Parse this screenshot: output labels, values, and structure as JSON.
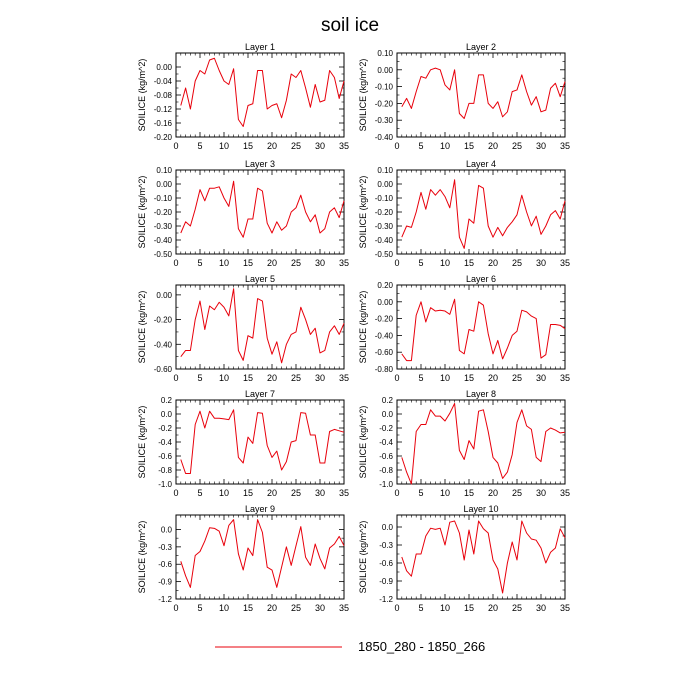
{
  "title": "soil ice",
  "legend": {
    "label": "1850_280 - 1850_266",
    "color": "#e8000b"
  },
  "line_color": "#e8000b",
  "chart_data": [
    {
      "type": "line",
      "title": "Layer 1",
      "ylabel": "SOILICE  (kg/m^2)",
      "xlim": [
        0,
        35
      ],
      "xticks": [
        0,
        5,
        10,
        15,
        20,
        25,
        30,
        35
      ],
      "ylim": [
        -0.2,
        0.04
      ],
      "yticks": [
        "0.00",
        "-0.04",
        "-0.08",
        "-0.12",
        "-0.16",
        "-0.20"
      ],
      "ytick_values": [
        0,
        -0.04,
        -0.08,
        -0.12,
        -0.16,
        -0.2
      ],
      "x": [
        1,
        2,
        3,
        4,
        5,
        6,
        7,
        8,
        9,
        10,
        11,
        12,
        13,
        14,
        15,
        16,
        17,
        18,
        19,
        20,
        21,
        22,
        23,
        24,
        25,
        26,
        27,
        28,
        29,
        30,
        31,
        32,
        33,
        34,
        35
      ],
      "values": [
        -0.11,
        -0.06,
        -0.12,
        -0.04,
        -0.01,
        -0.02,
        0.02,
        0.025,
        -0.01,
        -0.04,
        -0.05,
        -0.005,
        -0.15,
        -0.17,
        -0.11,
        -0.105,
        -0.01,
        -0.01,
        -0.12,
        -0.11,
        -0.105,
        -0.145,
        -0.095,
        -0.02,
        -0.03,
        -0.01,
        -0.06,
        -0.115,
        -0.05,
        -0.1,
        -0.095,
        -0.01,
        -0.03,
        -0.09,
        -0.04
      ]
    },
    {
      "type": "line",
      "title": "Layer 2",
      "ylabel": "SOILICE  (kg/m^2)",
      "xlim": [
        0,
        35
      ],
      "xticks": [
        0,
        5,
        10,
        15,
        20,
        25,
        30,
        35
      ],
      "ylim": [
        -0.4,
        0.1
      ],
      "yticks": [
        "0.10",
        "0.00",
        "-0.10",
        "-0.20",
        "-0.30",
        "-0.40"
      ],
      "ytick_values": [
        0.1,
        0,
        -0.1,
        -0.2,
        -0.3,
        -0.4
      ],
      "x": [
        1,
        2,
        3,
        4,
        5,
        6,
        7,
        8,
        9,
        10,
        11,
        12,
        13,
        14,
        15,
        16,
        17,
        18,
        19,
        20,
        21,
        22,
        23,
        24,
        25,
        26,
        27,
        28,
        29,
        30,
        31,
        32,
        33,
        34,
        35
      ],
      "values": [
        -0.22,
        -0.17,
        -0.23,
        -0.13,
        -0.04,
        -0.05,
        0.0,
        0.01,
        0.0,
        -0.09,
        -0.12,
        0.0,
        -0.26,
        -0.29,
        -0.2,
        -0.2,
        -0.03,
        -0.03,
        -0.2,
        -0.23,
        -0.19,
        -0.28,
        -0.25,
        -0.13,
        -0.12,
        -0.03,
        -0.13,
        -0.21,
        -0.16,
        -0.25,
        -0.24,
        -0.11,
        -0.08,
        -0.16,
        -0.07
      ]
    },
    {
      "type": "line",
      "title": "Layer 3",
      "ylabel": "SOILICE  (kg/m^2)",
      "xlim": [
        0,
        35
      ],
      "xticks": [
        0,
        5,
        10,
        15,
        20,
        25,
        30,
        35
      ],
      "ylim": [
        -0.5,
        0.1
      ],
      "yticks": [
        "0.10",
        "0.00",
        "-0.10",
        "-0.20",
        "-0.30",
        "-0.40",
        "-0.50"
      ],
      "ytick_values": [
        0.1,
        0,
        -0.1,
        -0.2,
        -0.3,
        -0.4,
        -0.5
      ],
      "x": [
        1,
        2,
        3,
        4,
        5,
        6,
        7,
        8,
        9,
        10,
        11,
        12,
        13,
        14,
        15,
        16,
        17,
        18,
        19,
        20,
        21,
        22,
        23,
        24,
        25,
        26,
        27,
        28,
        29,
        30,
        31,
        32,
        33,
        34,
        35
      ],
      "values": [
        -0.35,
        -0.27,
        -0.3,
        -0.18,
        -0.04,
        -0.12,
        -0.03,
        -0.03,
        -0.02,
        -0.1,
        -0.16,
        0.02,
        -0.32,
        -0.38,
        -0.25,
        -0.25,
        -0.03,
        -0.05,
        -0.28,
        -0.35,
        -0.27,
        -0.33,
        -0.3,
        -0.2,
        -0.17,
        -0.08,
        -0.2,
        -0.27,
        -0.22,
        -0.35,
        -0.32,
        -0.2,
        -0.17,
        -0.24,
        -0.12
      ]
    },
    {
      "type": "line",
      "title": "Layer 4",
      "ylabel": "SOILICE  (kg/m^2)",
      "xlim": [
        0,
        35
      ],
      "xticks": [
        0,
        5,
        10,
        15,
        20,
        25,
        30,
        35
      ],
      "ylim": [
        -0.5,
        0.1
      ],
      "yticks": [
        "0.10",
        "0.00",
        "-0.10",
        "-0.20",
        "-0.30",
        "-0.40",
        "-0.50"
      ],
      "ytick_values": [
        0.1,
        0,
        -0.1,
        -0.2,
        -0.3,
        -0.4,
        -0.5
      ],
      "x": [
        1,
        2,
        3,
        4,
        5,
        6,
        7,
        8,
        9,
        10,
        11,
        12,
        13,
        14,
        15,
        16,
        17,
        18,
        19,
        20,
        21,
        22,
        23,
        24,
        25,
        26,
        27,
        28,
        29,
        30,
        31,
        32,
        33,
        34,
        35
      ],
      "values": [
        -0.38,
        -0.3,
        -0.31,
        -0.2,
        -0.06,
        -0.18,
        -0.04,
        -0.08,
        -0.04,
        -0.09,
        -0.17,
        0.03,
        -0.38,
        -0.46,
        -0.25,
        -0.28,
        -0.01,
        -0.03,
        -0.3,
        -0.38,
        -0.31,
        -0.37,
        -0.31,
        -0.27,
        -0.22,
        -0.08,
        -0.2,
        -0.3,
        -0.23,
        -0.36,
        -0.3,
        -0.22,
        -0.19,
        -0.25,
        -0.12
      ]
    },
    {
      "type": "line",
      "title": "Layer 5",
      "ylabel": "SOILICE  (kg/m^2)",
      "xlim": [
        0,
        35
      ],
      "xticks": [
        0,
        5,
        10,
        15,
        20,
        25,
        30,
        35
      ],
      "ylim": [
        -0.6,
        0.08
      ],
      "yticks": [
        "0.00",
        "-0.20",
        "-0.40",
        "-0.60"
      ],
      "ytick_values": [
        0,
        -0.2,
        -0.4,
        -0.6
      ],
      "x": [
        1,
        2,
        3,
        4,
        5,
        6,
        7,
        8,
        9,
        10,
        11,
        12,
        13,
        14,
        15,
        16,
        17,
        18,
        19,
        20,
        21,
        22,
        23,
        24,
        25,
        26,
        27,
        28,
        29,
        30,
        31,
        32,
        33,
        34,
        35
      ],
      "values": [
        -0.5,
        -0.45,
        -0.45,
        -0.2,
        -0.05,
        -0.28,
        -0.09,
        -0.12,
        -0.06,
        -0.1,
        -0.17,
        0.05,
        -0.45,
        -0.53,
        -0.33,
        -0.35,
        -0.03,
        -0.05,
        -0.35,
        -0.48,
        -0.38,
        -0.55,
        -0.4,
        -0.32,
        -0.3,
        -0.1,
        -0.2,
        -0.32,
        -0.27,
        -0.47,
        -0.45,
        -0.3,
        -0.25,
        -0.32,
        -0.23
      ]
    },
    {
      "type": "line",
      "title": "Layer 6",
      "ylabel": "SOILICE  (kg/m^2)",
      "xlim": [
        0,
        35
      ],
      "xticks": [
        0,
        5,
        10,
        15,
        20,
        25,
        30,
        35
      ],
      "ylim": [
        -0.8,
        0.2
      ],
      "yticks": [
        "0.20",
        "0.00",
        "-0.20",
        "-0.40",
        "-0.60",
        "-0.80"
      ],
      "ytick_values": [
        0.2,
        0,
        -0.2,
        -0.4,
        -0.6,
        -0.8
      ],
      "x": [
        1,
        2,
        3,
        4,
        5,
        6,
        7,
        8,
        9,
        10,
        11,
        12,
        13,
        14,
        15,
        16,
        17,
        18,
        19,
        20,
        21,
        22,
        23,
        24,
        25,
        26,
        27,
        28,
        29,
        30,
        31,
        32,
        33,
        34,
        35
      ],
      "values": [
        -0.62,
        -0.7,
        -0.7,
        -0.16,
        0.0,
        -0.24,
        -0.07,
        -0.11,
        -0.1,
        -0.11,
        -0.15,
        0.03,
        -0.58,
        -0.62,
        -0.33,
        -0.35,
        0.0,
        -0.04,
        -0.38,
        -0.62,
        -0.46,
        -0.68,
        -0.55,
        -0.4,
        -0.35,
        -0.1,
        -0.12,
        -0.17,
        -0.2,
        -0.67,
        -0.63,
        -0.27,
        -0.27,
        -0.28,
        -0.32
      ]
    },
    {
      "type": "line",
      "title": "Layer 7",
      "ylabel": "SOILICE  (kg/m^2)",
      "xlim": [
        0,
        35
      ],
      "xticks": [
        0,
        5,
        10,
        15,
        20,
        25,
        30,
        35
      ],
      "ylim": [
        -1.0,
        0.2
      ],
      "yticks": [
        "0.2",
        "0.0",
        "-0.2",
        "-0.4",
        "-0.6",
        "-0.8",
        "-1.0"
      ],
      "ytick_values": [
        0.2,
        0,
        -0.2,
        -0.4,
        -0.6,
        -0.8,
        -1.0
      ],
      "x": [
        1,
        2,
        3,
        4,
        5,
        6,
        7,
        8,
        9,
        10,
        11,
        12,
        13,
        14,
        15,
        16,
        17,
        18,
        19,
        20,
        21,
        22,
        23,
        24,
        25,
        26,
        27,
        28,
        29,
        30,
        31,
        32,
        33,
        34,
        35
      ],
      "values": [
        -0.65,
        -0.85,
        -0.85,
        -0.15,
        0.04,
        -0.2,
        0.04,
        -0.06,
        -0.06,
        -0.07,
        -0.08,
        0.06,
        -0.62,
        -0.7,
        -0.33,
        -0.42,
        0.02,
        0.01,
        -0.45,
        -0.62,
        -0.53,
        -0.8,
        -0.68,
        -0.4,
        -0.38,
        0.02,
        0.01,
        -0.3,
        -0.3,
        -0.7,
        -0.7,
        -0.25,
        -0.22,
        -0.24,
        -0.26
      ]
    },
    {
      "type": "line",
      "title": "Layer 8",
      "ylabel": "SOILICE  (kg/m^2)",
      "xlim": [
        0,
        35
      ],
      "xticks": [
        0,
        5,
        10,
        15,
        20,
        25,
        30,
        35
      ],
      "ylim": [
        -1.0,
        0.2
      ],
      "yticks": [
        "0.2",
        "0.0",
        "-0.2",
        "-0.4",
        "-0.6",
        "-0.8",
        "-1.0"
      ],
      "ytick_values": [
        0.2,
        0,
        -0.2,
        -0.4,
        -0.6,
        -0.8,
        -1.0
      ],
      "x": [
        1,
        2,
        3,
        4,
        5,
        6,
        7,
        8,
        9,
        10,
        11,
        12,
        13,
        14,
        15,
        16,
        17,
        18,
        19,
        20,
        21,
        22,
        23,
        24,
        25,
        26,
        27,
        28,
        29,
        30,
        31,
        32,
        33,
        34,
        35
      ],
      "values": [
        -0.62,
        -0.83,
        -1.0,
        -0.25,
        -0.15,
        -0.15,
        0.06,
        -0.03,
        -0.03,
        -0.1,
        0.01,
        0.15,
        -0.52,
        -0.65,
        -0.38,
        -0.5,
        0.04,
        0.06,
        -0.25,
        -0.62,
        -0.7,
        -0.92,
        -0.83,
        -0.58,
        -0.12,
        0.06,
        -0.17,
        -0.22,
        -0.62,
        -0.68,
        -0.25,
        -0.2,
        -0.23,
        -0.27,
        -0.26
      ]
    },
    {
      "type": "line",
      "title": "Layer 9",
      "ylabel": "SOILICE  (kg/m^2)",
      "xlim": [
        0,
        35
      ],
      "xticks": [
        0,
        5,
        10,
        15,
        20,
        25,
        30,
        35
      ],
      "ylim": [
        -1.2,
        0.25
      ],
      "yticks": [
        "0.0",
        "-0.3",
        "-0.6",
        "-0.9",
        "-1.2"
      ],
      "ytick_values": [
        0,
        -0.3,
        -0.6,
        -0.9,
        -1.2
      ],
      "x": [
        1,
        2,
        3,
        4,
        5,
        6,
        7,
        8,
        9,
        10,
        11,
        12,
        13,
        14,
        15,
        16,
        17,
        18,
        19,
        20,
        21,
        22,
        23,
        24,
        25,
        26,
        27,
        28,
        29,
        30,
        31,
        32,
        33,
        34,
        35
      ],
      "values": [
        -0.55,
        -0.8,
        -1.0,
        -0.45,
        -0.38,
        -0.2,
        0.03,
        0.02,
        -0.03,
        -0.28,
        0.07,
        0.17,
        -0.42,
        -0.7,
        -0.32,
        -0.45,
        0.17,
        -0.05,
        -0.65,
        -0.7,
        -1.0,
        -0.65,
        -0.3,
        -0.62,
        -0.28,
        0.05,
        -0.48,
        -0.62,
        -0.25,
        -0.5,
        -0.68,
        -0.32,
        -0.25,
        -0.12,
        -0.28
      ]
    },
    {
      "type": "line",
      "title": "Layer 10",
      "ylabel": "SOILICE  (kg/m^2)",
      "xlim": [
        0,
        35
      ],
      "xticks": [
        0,
        5,
        10,
        15,
        20,
        25,
        30,
        35
      ],
      "ylim": [
        -1.2,
        0.2
      ],
      "yticks": [
        "0.0",
        "-0.3",
        "-0.6",
        "-0.9",
        "-1.2"
      ],
      "ytick_values": [
        0,
        -0.3,
        -0.6,
        -0.9,
        -1.2
      ],
      "x": [
        1,
        2,
        3,
        4,
        5,
        6,
        7,
        8,
        9,
        10,
        11,
        12,
        13,
        14,
        15,
        16,
        17,
        18,
        19,
        20,
        21,
        22,
        23,
        24,
        25,
        26,
        27,
        28,
        29,
        30,
        31,
        32,
        33,
        34,
        35
      ],
      "values": [
        -0.5,
        -0.73,
        -0.82,
        -0.45,
        -0.45,
        -0.15,
        -0.02,
        -0.04,
        -0.02,
        -0.3,
        0.08,
        0.1,
        -0.1,
        -0.55,
        -0.05,
        -0.45,
        0.1,
        -0.03,
        -0.1,
        -0.55,
        -0.7,
        -1.1,
        -0.6,
        -0.25,
        -0.55,
        0.1,
        -0.1,
        -0.2,
        -0.22,
        -0.35,
        -0.6,
        -0.42,
        -0.35,
        -0.03,
        -0.18
      ]
    }
  ]
}
